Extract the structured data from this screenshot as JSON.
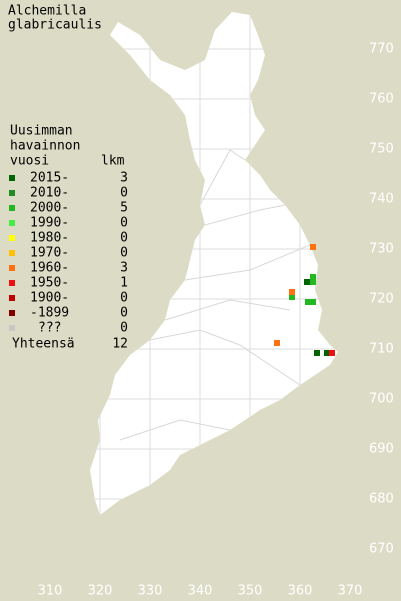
{
  "title": [
    "Alchemilla",
    "glabricaulis"
  ],
  "legend": {
    "header": [
      "Uusimman",
      "havainnon",
      "vuosi"
    ],
    "count_header": "lkm",
    "rows": [
      {
        "label": "2015-",
        "count": 3,
        "color": "#006400",
        "points": [
          [
            361.4,
            723.4
          ],
          [
            363.4,
            709.2
          ],
          [
            365.4,
            709.2
          ]
        ]
      },
      {
        "label": "2010-",
        "count": 0,
        "color": "#228b22",
        "points": []
      },
      {
        "label": "2000-",
        "count": 5,
        "color": "#22b822",
        "points": [
          [
            362.6,
            724.4
          ],
          [
            362.6,
            723.4
          ],
          [
            358.4,
            720.4
          ],
          [
            361.6,
            719.4
          ],
          [
            362.6,
            719.4
          ]
        ]
      },
      {
        "label": "1990-",
        "count": 0,
        "color": "#44ee44",
        "points": []
      },
      {
        "label": "1980-",
        "count": 0,
        "color": "#ffff00",
        "points": []
      },
      {
        "label": "1970-",
        "count": 0,
        "color": "#ffc000",
        "points": []
      },
      {
        "label": "1960-",
        "count": 3,
        "color": "#ff7010",
        "points": [
          [
            362.6,
            730.4
          ],
          [
            358.4,
            721.4
          ],
          [
            355.4,
            711.2
          ]
        ]
      },
      {
        "label": "1950-",
        "count": 1,
        "color": "#ee1010",
        "points": [
          [
            366.4,
            709.2
          ]
        ]
      },
      {
        "label": "1900-",
        "count": 0,
        "color": "#c00000",
        "points": []
      },
      {
        "label": "-1899",
        "count": 0,
        "color": "#800000",
        "points": []
      },
      {
        "label": "???",
        "count": 0,
        "color": "#c8c8c8",
        "points": []
      }
    ],
    "total_label": "Yhteensä",
    "total": 12
  },
  "map": {
    "x_ticks": [
      310,
      320,
      330,
      340,
      350,
      360,
      370
    ],
    "y_ticks": [
      770,
      760,
      750,
      740,
      730,
      720,
      710,
      700,
      690,
      680,
      670
    ]
  }
}
